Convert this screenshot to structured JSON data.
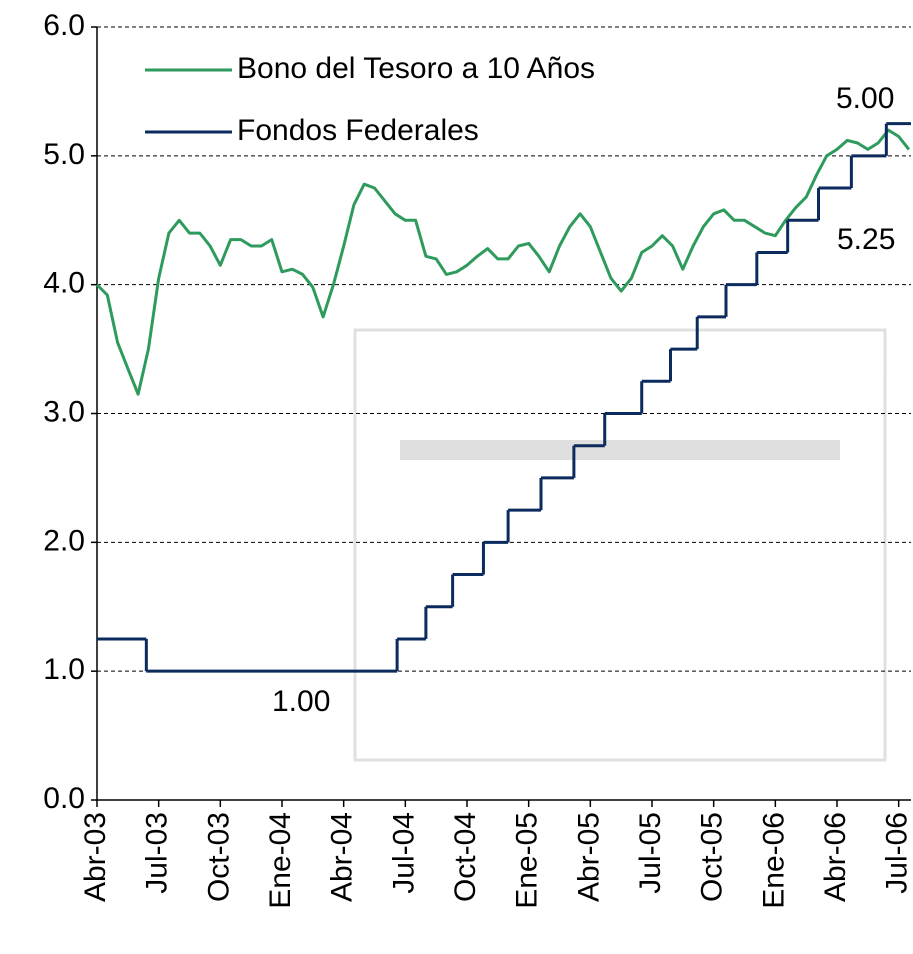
{
  "chart_data": {
    "type": "line",
    "xlim": [
      0,
      39.6
    ],
    "xticks": [
      {
        "value": 0,
        "label": "Abr-03"
      },
      {
        "value": 3,
        "label": "Jul-03"
      },
      {
        "value": 6,
        "label": "Oct-03"
      },
      {
        "value": 9,
        "label": "Ene-04"
      },
      {
        "value": 12,
        "label": "Abr-04"
      },
      {
        "value": 15,
        "label": "Jul-04"
      },
      {
        "value": 18,
        "label": "Oct-04"
      },
      {
        "value": 21,
        "label": "Ene-05"
      },
      {
        "value": 24,
        "label": "Abr-05"
      },
      {
        "value": 27,
        "label": "Jul-05"
      },
      {
        "value": 30,
        "label": "Oct-05"
      },
      {
        "value": 33,
        "label": "Ene-06"
      },
      {
        "value": 36,
        "label": "Abr-06"
      },
      {
        "value": 39,
        "label": "Jul-06"
      }
    ],
    "ylim": [
      0,
      6
    ],
    "yticks": [
      {
        "value": 0,
        "label": "0.0"
      },
      {
        "value": 1,
        "label": "1.0"
      },
      {
        "value": 2,
        "label": "2.0"
      },
      {
        "value": 3,
        "label": "3.0"
      },
      {
        "value": 4,
        "label": "4.0"
      },
      {
        "value": 5,
        "label": "5.0"
      },
      {
        "value": 6,
        "label": "6.0"
      }
    ],
    "grid": true,
    "legend": "top-left",
    "series": [
      {
        "name": "Bono del Tesoro a 10 Años",
        "color": "#2e9a5c",
        "step": false,
        "x": [
          0,
          0.5,
          1,
          1.5,
          2,
          2.5,
          3,
          3.5,
          4,
          4.5,
          5,
          5.5,
          6,
          6.5,
          7,
          7.5,
          8,
          8.5,
          9,
          9.5,
          10,
          10.5,
          11,
          11.5,
          12,
          12.5,
          13,
          13.5,
          14,
          14.5,
          15,
          15.5,
          16,
          16.5,
          17,
          17.5,
          18,
          18.5,
          19,
          19.5,
          20,
          20.5,
          21,
          21.5,
          22,
          22.5,
          23,
          23.5,
          24,
          24.5,
          25,
          25.5,
          26,
          26.5,
          27,
          27.5,
          28,
          28.5,
          29,
          29.5,
          30,
          30.5,
          31,
          31.5,
          32,
          32.5,
          33,
          33.5,
          34,
          34.5,
          35,
          35.5,
          36,
          36.5,
          37,
          37.5,
          38,
          38.5,
          39,
          39.5
        ],
        "values": [
          4.0,
          3.92,
          3.55,
          3.35,
          3.15,
          3.5,
          4.05,
          4.4,
          4.5,
          4.4,
          4.4,
          4.3,
          4.15,
          4.35,
          4.35,
          4.3,
          4.3,
          4.35,
          4.1,
          4.12,
          4.08,
          3.98,
          3.75,
          4.0,
          4.3,
          4.62,
          4.78,
          4.75,
          4.65,
          4.55,
          4.5,
          4.5,
          4.22,
          4.2,
          4.08,
          4.1,
          4.15,
          4.22,
          4.28,
          4.2,
          4.2,
          4.3,
          4.32,
          4.22,
          4.1,
          4.3,
          4.45,
          4.55,
          4.45,
          4.25,
          4.05,
          3.95,
          4.05,
          4.25,
          4.3,
          4.38,
          4.3,
          4.12,
          4.3,
          4.45,
          4.55,
          4.58,
          4.5,
          4.5,
          4.45,
          4.4,
          4.38,
          4.5,
          4.6,
          4.68,
          4.85,
          5.0,
          5.05,
          5.12,
          5.1,
          5.05,
          5.1,
          5.2,
          5.15,
          5.05
        ]
      },
      {
        "name": "Fondos Federales",
        "color": "#0b2a5e",
        "step": true,
        "x": [
          0,
          2.4,
          14.6,
          16.0,
          17.3,
          18.8,
          20.0,
          21.6,
          23.2,
          24.7,
          26.5,
          27.9,
          29.2,
          30.6,
          32.1,
          33.6,
          35.1,
          36.7,
          38.4
        ],
        "values": [
          1.25,
          1.0,
          1.25,
          1.5,
          1.75,
          2.0,
          2.25,
          2.5,
          2.75,
          3.0,
          3.25,
          3.5,
          3.75,
          4.0,
          4.25,
          4.5,
          4.75,
          5.0,
          5.25
        ]
      }
    ],
    "annotations": [
      {
        "text": "5.00",
        "color": "#2e9a5c"
      },
      {
        "text": "5.25",
        "color": "#1a1a7a"
      },
      {
        "text": "1.00",
        "color": "#1a1a7a"
      }
    ]
  }
}
